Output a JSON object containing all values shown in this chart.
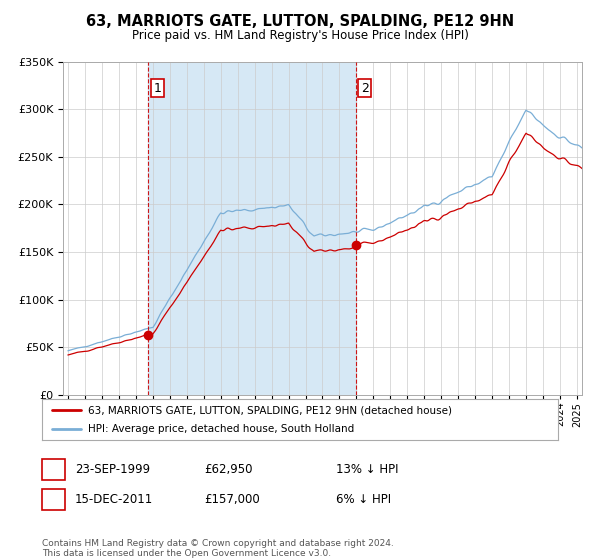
{
  "title": "63, MARRIOTS GATE, LUTTON, SPALDING, PE12 9HN",
  "subtitle": "Price paid vs. HM Land Registry's House Price Index (HPI)",
  "legend_line1": "63, MARRIOTS GATE, LUTTON, SPALDING, PE12 9HN (detached house)",
  "legend_line2": "HPI: Average price, detached house, South Holland",
  "footer": "Contains HM Land Registry data © Crown copyright and database right 2024.\nThis data is licensed under the Open Government Licence v3.0.",
  "table": [
    {
      "num": "1",
      "date": "23-SEP-1999",
      "price": "£62,950",
      "hpi": "13% ↓ HPI"
    },
    {
      "num": "2",
      "date": "15-DEC-2011",
      "price": "£157,000",
      "hpi": "6% ↓ HPI"
    }
  ],
  "marker1_x": 1999.73,
  "marker1_y": 62950,
  "marker2_x": 2011.96,
  "marker2_y": 157000,
  "vline1_x": 1999.73,
  "vline2_x": 2011.96,
  "ylim": [
    0,
    350000
  ],
  "xlim_start": 1994.7,
  "xlim_end": 2025.3,
  "hpi_color": "#7aaed6",
  "price_color": "#cc0000",
  "vline_color": "#cc0000",
  "shade_color": "#d6e8f5",
  "background_color": "#ffffff",
  "grid_color": "#cccccc"
}
